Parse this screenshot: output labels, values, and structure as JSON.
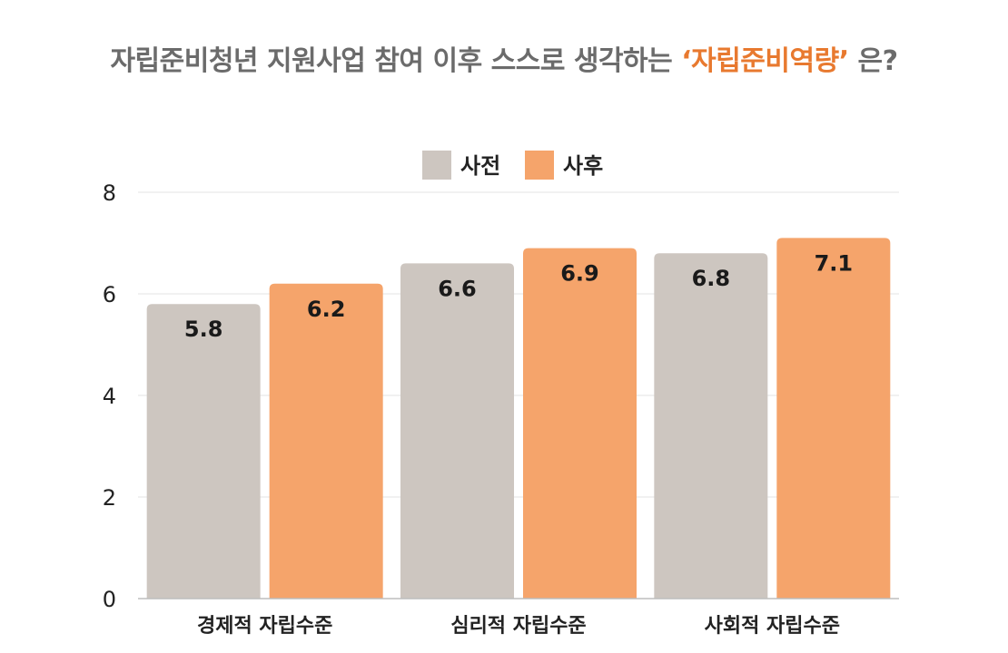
{
  "title": {
    "prefix": "자립준비청년 지원사업 참여 이후 스스로 생각하는 ",
    "highlight": "‘자립준비역량’",
    "suffix": " 은?"
  },
  "colors": {
    "before": "#cdc6c0",
    "after": "#f5a46b",
    "title_highlight": "#e8792f"
  },
  "chart_data": {
    "type": "bar",
    "categories": [
      "경제적 자립수준",
      "심리적 자립수준",
      "사회적 자립수준"
    ],
    "series": [
      {
        "name": "사전",
        "values": [
          5.8,
          6.6,
          6.8
        ],
        "labels": [
          "5.8",
          "6.6",
          "6.8"
        ]
      },
      {
        "name": "사후",
        "values": [
          6.2,
          6.9,
          7.1
        ],
        "labels": [
          "6.2",
          "6.9",
          "7.1"
        ]
      }
    ],
    "ylim": [
      0,
      8
    ],
    "yticks": [
      0,
      2,
      4,
      6,
      8
    ],
    "grid": true,
    "legend": "top-center"
  }
}
